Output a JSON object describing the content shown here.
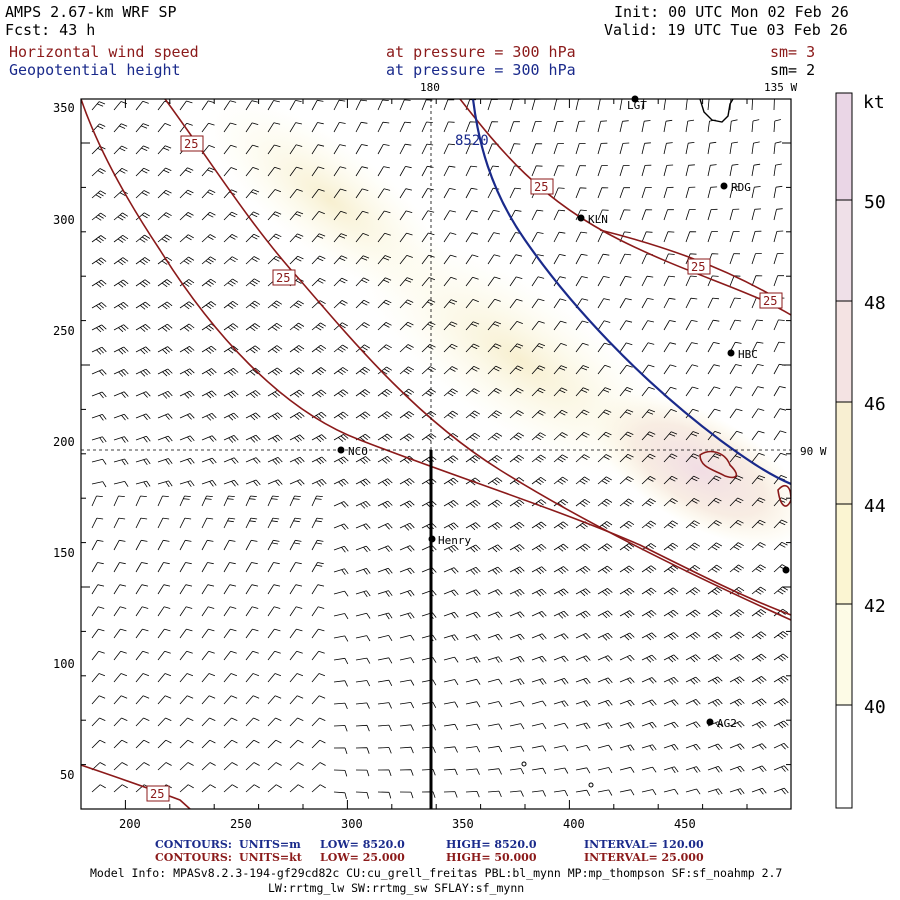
{
  "header": {
    "title": "AMPS 2.67-km WRF SP",
    "forecast": "Fcst:    43 h",
    "init": "Init: 00 UTC Mon 02 Feb 26",
    "valid": "Valid: 19 UTC Tue 03 Feb 26",
    "field1": "Horizontal wind speed",
    "field1_level": "at pressure =  300 hPa",
    "field1_sm": "sm= 3",
    "field2": "Geopotential height",
    "field2_level": "at pressure =  300 hPa",
    "field2_sm": "sm= 2"
  },
  "map": {
    "x_ticks": [
      "200",
      "250",
      "300",
      "350",
      "400",
      "450"
    ],
    "y_ticks": [
      "350",
      "300",
      "250",
      "200",
      "150",
      "100",
      "50"
    ],
    "meridian_labels": {
      "top_180": "180",
      "top_135w": "135 W",
      "right_90w": "90 W"
    },
    "stations": [
      {
        "name": "LGT"
      },
      {
        "name": "RDG"
      },
      {
        "name": "KLN"
      },
      {
        "name": "HBC"
      },
      {
        "name": "NCO"
      },
      {
        "name": "Henry"
      },
      {
        "name": "AG2"
      },
      {
        "name": ""
      }
    ],
    "height_contour_label": "8520",
    "speed_contour_labels": [
      "25",
      "25",
      "25",
      "25",
      "25",
      "25"
    ]
  },
  "colorbar": {
    "unit": "kt",
    "labels": [
      "50",
      "48",
      "46",
      "44",
      "42",
      "40"
    ],
    "colors": [
      "#ffffff",
      "#fdfbe6",
      "#fbf5d2",
      "#f8efd2",
      "#f4e3e3",
      "#efd9e8"
    ]
  },
  "footer": {
    "contour1": {
      "label": "CONTOURS:",
      "units": "UNITS=m",
      "low": "LOW=   8520.0",
      "high": "HIGH=   8520.0",
      "interval": "INTERVAL=      120.00"
    },
    "contour2": {
      "label": "CONTOURS:",
      "units": "UNITS=kt",
      "low": "LOW=   25.000",
      "high": "HIGH=  50.000",
      "interval": "INTERVAL=      25.000"
    },
    "model_info_1": "Model Info: MPASv8.2.3-194-gf29cd82c CU:cu_grell_freitas PBL:bl_mynn MP:mp_thompson SF:sf_noahmp 2.7",
    "model_info_2": "LW:rrtmg_lw SW:rrtmg_sw SFLAY:sf_mynn"
  }
}
